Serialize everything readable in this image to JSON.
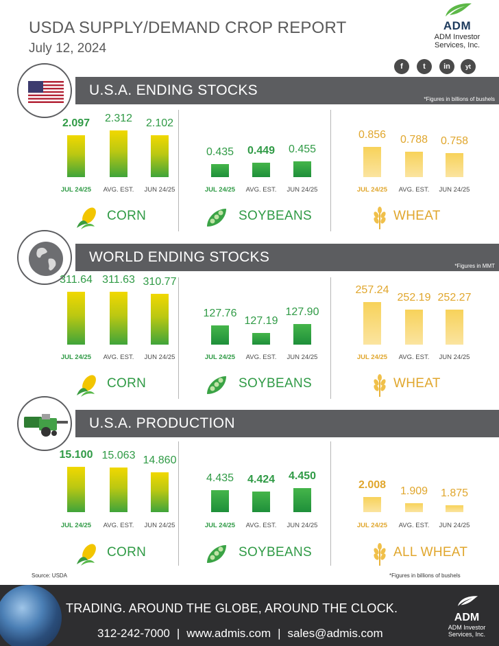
{
  "header": {
    "title": "USDA SUPPLY/DEMAND CROP REPORT",
    "date": "July 12, 2024",
    "logo_text": "ADM",
    "company_line1": "ADM Investor",
    "company_line2": "Services, Inc.",
    "social": [
      "f",
      "t",
      "in",
      "yt"
    ]
  },
  "colors": {
    "green": "#2f9a45",
    "gold": "#e0a62c",
    "bar_gray": "#5c5d60"
  },
  "sections": [
    {
      "title": "U.S.A. ENDING STOCKS",
      "note": "*Figures in billions of bushels",
      "icon": "us-flag-icon"
    },
    {
      "title": "WORLD ENDING STOCKS",
      "note": "*Figures in MMT",
      "icon": "globe-icon"
    },
    {
      "title": "U.S.A. PRODUCTION",
      "note": "",
      "icon": "combine-harvester-icon"
    }
  ],
  "categories": [
    "JUL 24/25",
    "AVG. EST.",
    "JUN 24/25"
  ],
  "crop_names": [
    [
      "CORN",
      "SOYBEANS",
      "WHEAT"
    ],
    [
      "CORN",
      "SOYBEANS",
      "WHEAT"
    ],
    [
      "CORN",
      "SOYBEANS",
      "ALL WHEAT"
    ]
  ],
  "display_values": [
    [
      [
        "2.097",
        "2.312",
        "2.102"
      ],
      [
        "0.435",
        "0.449",
        "0.455"
      ],
      [
        "0.856",
        "0.788",
        "0.758"
      ]
    ],
    [
      [
        "311.64",
        "311.63",
        "310.77"
      ],
      [
        "127.76",
        "127.19",
        "127.90"
      ],
      [
        "257.24",
        "252.19",
        "252.27"
      ]
    ],
    [
      [
        "15.100",
        "15.063",
        "14.860"
      ],
      [
        "4.435",
        "4.424",
        "4.450"
      ],
      [
        "2.008",
        "1.909",
        "1.875"
      ]
    ]
  ],
  "chart_data": [
    {
      "type": "bar",
      "title": "U.S.A. ENDING STOCKS",
      "unit_note": "*Figures in billions of bushels",
      "categories": [
        "JUL 24/25",
        "AVG. EST.",
        "JUN 24/25"
      ],
      "series": [
        {
          "name": "CORN",
          "values": [
            2.097,
            2.312,
            2.102
          ]
        },
        {
          "name": "SOYBEANS",
          "values": [
            0.435,
            0.449,
            0.455
          ]
        },
        {
          "name": "WHEAT",
          "values": [
            0.856,
            0.788,
            0.758
          ]
        }
      ]
    },
    {
      "type": "bar",
      "title": "WORLD ENDING STOCKS",
      "unit_note": "*Figures in MMT",
      "categories": [
        "JUL 24/25",
        "AVG. EST.",
        "JUN 24/25"
      ],
      "series": [
        {
          "name": "CORN",
          "values": [
            311.64,
            311.63,
            310.77
          ]
        },
        {
          "name": "SOYBEANS",
          "values": [
            127.76,
            127.19,
            127.9
          ]
        },
        {
          "name": "WHEAT",
          "values": [
            257.24,
            252.19,
            252.27
          ]
        }
      ]
    },
    {
      "type": "bar",
      "title": "U.S.A. PRODUCTION",
      "unit_note": "*Figures in billions of bushels",
      "categories": [
        "JUL 24/25",
        "AVG. EST.",
        "JUN 24/25"
      ],
      "series": [
        {
          "name": "CORN",
          "values": [
            15.1,
            15.063,
            14.86
          ]
        },
        {
          "name": "SOYBEANS",
          "values": [
            4.435,
            4.424,
            4.45
          ]
        },
        {
          "name": "ALL WHEAT",
          "values": [
            2.008,
            1.909,
            1.875
          ]
        }
      ]
    }
  ],
  "footer": {
    "source": "Source: USDA",
    "note": "*Figures in billions of bushels",
    "tagline": "TRADING. AROUND THE GLOBE, AROUND THE CLOCK.",
    "phone": "312-242-7000",
    "website": "www.admis.com",
    "email": "sales@admis.com",
    "logo_text": "ADM",
    "company_line1": "ADM Investor",
    "company_line2": "Services, Inc."
  }
}
